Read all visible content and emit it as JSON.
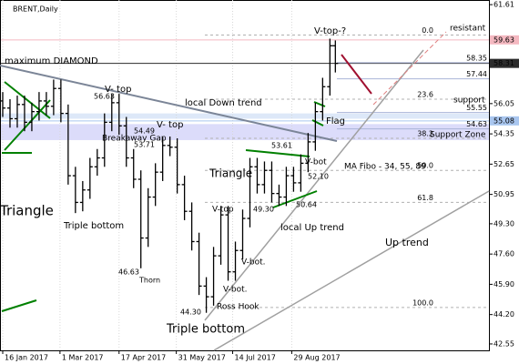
{
  "chart_data": {
    "type": "ohlc",
    "title": "BRENT,Daily",
    "x": [
      0,
      4,
      8,
      12,
      16,
      20,
      24,
      28,
      32,
      36,
      40,
      44,
      48,
      52,
      56,
      60,
      64,
      68,
      72,
      76,
      80,
      84,
      88,
      92,
      96,
      100,
      104,
      108,
      112,
      116,
      120,
      124,
      128,
      132,
      136,
      140,
      144,
      148,
      152,
      156,
      160,
      164,
      168,
      172,
      176,
      180,
      183
    ],
    "open": [
      56.2,
      55.8,
      55.2,
      56.0,
      55.0,
      55.6,
      56.2,
      55.9,
      56.9,
      55.5,
      52.0,
      50.5,
      51.2,
      52.5,
      53.0,
      55.0,
      56.1,
      54.8,
      53.0,
      51.8,
      48.5,
      50.8,
      52.2,
      53.7,
      53.6,
      51.5,
      50.0,
      48.3,
      45.8,
      45.2,
      47.5,
      49.8,
      46.6,
      47.8,
      49.6,
      52.5,
      51.5,
      52.3,
      51.0,
      50.8,
      52.0,
      51.6,
      52.7,
      53.9,
      55.6,
      57.0,
      59.3
    ],
    "high": [
      56.7,
      56.3,
      56.5,
      56.5,
      56.1,
      56.7,
      56.7,
      57.4,
      57.4,
      56.0,
      52.5,
      51.7,
      53.0,
      53.5,
      55.5,
      56.6,
      56.6,
      55.3,
      53.5,
      52.3,
      51.3,
      52.7,
      54.2,
      54.2,
      54.1,
      52.0,
      50.5,
      48.8,
      46.3,
      48.0,
      50.3,
      50.3,
      48.3,
      50.1,
      53.0,
      53.0,
      52.8,
      52.8,
      51.5,
      52.5,
      52.5,
      53.2,
      54.4,
      56.1,
      57.5,
      59.7,
      59.6
    ],
    "low": [
      55.3,
      54.7,
      54.7,
      54.5,
      54.5,
      55.1,
      55.4,
      55.4,
      55.0,
      51.5,
      49.9,
      50.0,
      50.7,
      52.0,
      52.5,
      54.5,
      54.3,
      52.5,
      51.3,
      46.8,
      48.0,
      50.3,
      51.7,
      53.1,
      51.0,
      49.5,
      47.8,
      45.3,
      44.3,
      44.7,
      47.0,
      46.1,
      46.1,
      47.3,
      49.1,
      51.0,
      51.0,
      50.5,
      50.3,
      50.3,
      51.1,
      51.1,
      52.2,
      53.4,
      55.1,
      56.5,
      57.8
    ],
    "close": [
      55.8,
      55.2,
      56.0,
      55.0,
      55.6,
      56.2,
      55.9,
      56.9,
      55.5,
      52.0,
      50.5,
      51.2,
      52.5,
      53.0,
      55.0,
      56.1,
      54.8,
      53.0,
      51.8,
      48.5,
      50.8,
      52.2,
      53.7,
      53.6,
      51.5,
      50.0,
      48.3,
      45.8,
      45.2,
      47.5,
      49.8,
      46.6,
      47.8,
      49.6,
      52.5,
      51.5,
      52.3,
      51.0,
      50.8,
      52.0,
      51.6,
      52.7,
      53.9,
      55.6,
      57.0,
      59.3,
      58.31
    ],
    "color": "#000000",
    "xlim": [
      -1,
      267.5
    ],
    "ylim": [
      42.19,
      61.87
    ],
    "xticks": [
      {
        "value": 0,
        "label": "16 Jan 2017"
      },
      {
        "value": 31.5,
        "label": "1 Mar 2017"
      },
      {
        "value": 64,
        "label": "17 Apr 2017"
      },
      {
        "value": 95.5,
        "label": "31 May 2017"
      },
      {
        "value": 126.5,
        "label": "14 Jul 2017"
      },
      {
        "value": 159,
        "label": "29 Aug 2017"
      }
    ],
    "yticks": [
      61.61,
      {
        "value": 56.05,
        "label": "56.05"
      },
      54.35,
      52.65,
      50.95,
      {
        "value": 49.3,
        "label": "49.30"
      },
      {
        "value": 47.6,
        "label": "47.60"
      },
      {
        "value": 45.9,
        "label": "45.90"
      },
      {
        "value": 44.2,
        "label": "44.20"
      },
      42.55
    ],
    "grid": true,
    "price_markers": [
      {
        "value": 59.63,
        "label": "59.63",
        "color": "#f4b8c0"
      },
      {
        "value": 58.31,
        "label": "58.31",
        "color": "#2b2b2b"
      },
      {
        "value": 55.08,
        "label": "55.08",
        "color": "#a9c6ef"
      }
    ],
    "levels": [
      {
        "value": 58.35,
        "label": "58.35"
      },
      {
        "value": 57.44,
        "label": "57.44"
      },
      {
        "value": 55.55,
        "label": "55.55"
      },
      {
        "value": 54.63,
        "label": "54.63"
      }
    ],
    "fib_levels": [
      {
        "value": 59.9,
        "label": "0.0"
      },
      {
        "value": 56.3,
        "label": "23.6"
      },
      {
        "value": 54.1,
        "label": "38.2"
      },
      {
        "value": 52.3,
        "label": "50.0"
      },
      {
        "value": 50.5,
        "label": "61.8"
      },
      {
        "value": 44.6,
        "label": "100.0"
      }
    ],
    "zones": [
      {
        "from": 54.0,
        "to": 54.9,
        "color": "#dcdcfa"
      },
      {
        "from": 55.2,
        "to": 55.5,
        "color": "#dde8f8"
      }
    ],
    "annotations": [
      "maximum DIAMOND",
      "V- top",
      "V- top",
      "V-top-?",
      "local Down trend",
      "Flag",
      "Triangle",
      "Triangle",
      "Triple bottom",
      "Thorn",
      "Triple bottom",
      "V-top",
      "V-bot",
      "V-bot.",
      "V-bot.",
      "Ross Hook",
      "local Up trend",
      "Up trend",
      "resistant",
      "support",
      "Support Zone",
      "MA Fibo - 34, 55, 89",
      "Breakaway Gap",
      "56.63",
      "54.49",
      "53.71",
      "46.63",
      "44.30",
      "53.61",
      "52.10",
      "50.64",
      "49.30"
    ]
  }
}
